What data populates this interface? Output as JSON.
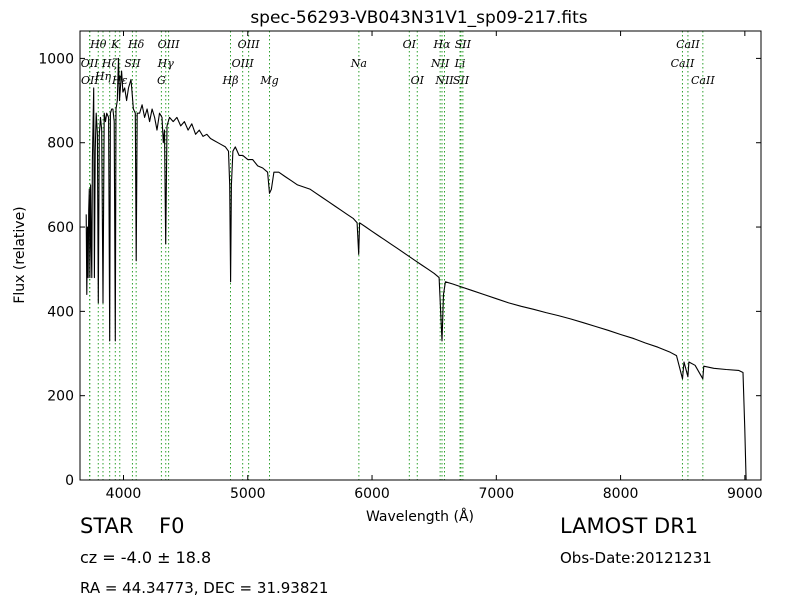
{
  "chart_data": {
    "type": "line",
    "title": "spec-56293-VB043N31V1_sp09-217.fits",
    "xlabel": "Wavelength (Å)",
    "ylabel": "Flux (relative)",
    "xlim": [
      3650,
      9130
    ],
    "ylim": [
      0,
      1065
    ],
    "xticks": [
      4000,
      5000,
      6000,
      7000,
      8000,
      9000
    ],
    "yticks": [
      0,
      200,
      400,
      600,
      800,
      1000
    ],
    "grid": false,
    "line_color": "#000000",
    "marker_color": "#2ca02c",
    "series": [
      {
        "points": [
          [
            3700,
            630
          ],
          [
            3705,
            440
          ],
          [
            3710,
            600
          ],
          [
            3715,
            480
          ],
          [
            3720,
            640
          ],
          [
            3725,
            690
          ],
          [
            3730,
            480
          ],
          [
            3735,
            700
          ],
          [
            3740,
            560
          ],
          [
            3745,
            480
          ],
          [
            3750,
            760
          ],
          [
            3760,
            930
          ],
          [
            3766,
            480
          ],
          [
            3772,
            780
          ],
          [
            3780,
            870
          ],
          [
            3790,
            820
          ],
          [
            3797,
            420
          ],
          [
            3805,
            820
          ],
          [
            3815,
            860
          ],
          [
            3825,
            830
          ],
          [
            3835,
            420
          ],
          [
            3845,
            870
          ],
          [
            3855,
            850
          ],
          [
            3865,
            870
          ],
          [
            3880,
            860
          ],
          [
            3889,
            330
          ],
          [
            3895,
            870
          ],
          [
            3905,
            880
          ],
          [
            3915,
            880
          ],
          [
            3925,
            850
          ],
          [
            3934,
            330
          ],
          [
            3940,
            880
          ],
          [
            3950,
            900
          ],
          [
            3960,
            1000
          ],
          [
            3968,
            900
          ],
          [
            3975,
            930
          ],
          [
            3985,
            970
          ],
          [
            3995,
            920
          ],
          [
            4010,
            930
          ],
          [
            4025,
            900
          ],
          [
            4040,
            930
          ],
          [
            4060,
            950
          ],
          [
            4080,
            880
          ],
          [
            4095,
            870
          ],
          [
            4102,
            520
          ],
          [
            4110,
            870
          ],
          [
            4130,
            870
          ],
          [
            4150,
            890
          ],
          [
            4170,
            860
          ],
          [
            4190,
            880
          ],
          [
            4210,
            850
          ],
          [
            4230,
            880
          ],
          [
            4250,
            860
          ],
          [
            4270,
            830
          ],
          [
            4290,
            870
          ],
          [
            4310,
            860
          ],
          [
            4320,
            800
          ],
          [
            4330,
            830
          ],
          [
            4340,
            560
          ],
          [
            4350,
            840
          ],
          [
            4370,
            860
          ],
          [
            4400,
            850
          ],
          [
            4430,
            860
          ],
          [
            4460,
            840
          ],
          [
            4490,
            850
          ],
          [
            4520,
            830
          ],
          [
            4550,
            845
          ],
          [
            4580,
            820
          ],
          [
            4610,
            830
          ],
          [
            4640,
            815
          ],
          [
            4670,
            820
          ],
          [
            4700,
            810
          ],
          [
            4730,
            805
          ],
          [
            4760,
            800
          ],
          [
            4790,
            795
          ],
          [
            4820,
            790
          ],
          [
            4845,
            780
          ],
          [
            4855,
            700
          ],
          [
            4862,
            470
          ],
          [
            4868,
            700
          ],
          [
            4880,
            780
          ],
          [
            4900,
            790
          ],
          [
            4930,
            770
          ],
          [
            4960,
            770
          ],
          [
            5000,
            760
          ],
          [
            5040,
            760
          ],
          [
            5080,
            745
          ],
          [
            5120,
            740
          ],
          [
            5160,
            730
          ],
          [
            5175,
            680
          ],
          [
            5190,
            690
          ],
          [
            5210,
            730
          ],
          [
            5250,
            730
          ],
          [
            5300,
            720
          ],
          [
            5350,
            710
          ],
          [
            5400,
            700
          ],
          [
            5450,
            695
          ],
          [
            5500,
            690
          ],
          [
            5550,
            680
          ],
          [
            5600,
            670
          ],
          [
            5650,
            660
          ],
          [
            5700,
            650
          ],
          [
            5750,
            640
          ],
          [
            5800,
            630
          ],
          [
            5850,
            620
          ],
          [
            5880,
            610
          ],
          [
            5893,
            535
          ],
          [
            5900,
            610
          ],
          [
            5950,
            600
          ],
          [
            6000,
            590
          ],
          [
            6050,
            580
          ],
          [
            6100,
            570
          ],
          [
            6150,
            560
          ],
          [
            6200,
            550
          ],
          [
            6250,
            540
          ],
          [
            6300,
            530
          ],
          [
            6350,
            520
          ],
          [
            6400,
            510
          ],
          [
            6450,
            500
          ],
          [
            6500,
            490
          ],
          [
            6540,
            480
          ],
          [
            6563,
            330
          ],
          [
            6575,
            440
          ],
          [
            6590,
            470
          ],
          [
            6650,
            465
          ],
          [
            6700,
            460
          ],
          [
            6800,
            450
          ],
          [
            6900,
            440
          ],
          [
            7000,
            430
          ],
          [
            7100,
            420
          ],
          [
            7200,
            412
          ],
          [
            7300,
            405
          ],
          [
            7400,
            397
          ],
          [
            7500,
            390
          ],
          [
            7600,
            382
          ],
          [
            7700,
            373
          ],
          [
            7800,
            364
          ],
          [
            7900,
            355
          ],
          [
            8000,
            345
          ],
          [
            8100,
            336
          ],
          [
            8200,
            325
          ],
          [
            8300,
            315
          ],
          [
            8400,
            303
          ],
          [
            8450,
            295
          ],
          [
            8498,
            240
          ],
          [
            8510,
            280
          ],
          [
            8542,
            245
          ],
          [
            8550,
            280
          ],
          [
            8600,
            272
          ],
          [
            8662,
            240
          ],
          [
            8670,
            270
          ],
          [
            8750,
            265
          ],
          [
            8850,
            262
          ],
          [
            8950,
            260
          ],
          [
            8985,
            255
          ],
          [
            9000,
            120
          ],
          [
            9010,
            0
          ]
        ]
      }
    ],
    "lines": [
      {
        "name": "OII",
        "x": 3727,
        "row": 1
      },
      {
        "name": "OII",
        "x": 3729,
        "row": 2
      },
      {
        "name": "Hθ",
        "x": 3797,
        "row": 0
      },
      {
        "name": "Hη",
        "x": 3835,
        "row": 1.5
      },
      {
        "name": "Hζ",
        "x": 3889,
        "row": 1
      },
      {
        "name": "K",
        "x": 3934,
        "row": 0
      },
      {
        "name": "Hε",
        "x": 3970,
        "row": 2
      },
      {
        "name": "SII",
        "x": 4072,
        "row": 1
      },
      {
        "name": "Hδ",
        "x": 4102,
        "row": 0
      },
      {
        "name": "G",
        "x": 4305,
        "row": 2
      },
      {
        "name": "Hγ",
        "x": 4340,
        "row": 1
      },
      {
        "name": "OIII",
        "x": 4363,
        "row": 0
      },
      {
        "name": "Hβ",
        "x": 4861,
        "row": 2
      },
      {
        "name": "OIII",
        "x": 4959,
        "row": 1
      },
      {
        "name": "OIII",
        "x": 5007,
        "row": 0
      },
      {
        "name": "Mg",
        "x": 5175,
        "row": 2
      },
      {
        "name": "Na",
        "x": 5894,
        "row": 1
      },
      {
        "name": "OI",
        "x": 6300,
        "row": 0
      },
      {
        "name": "OI",
        "x": 6364,
        "row": 2
      },
      {
        "name": "NII",
        "x": 6548,
        "row": 1
      },
      {
        "name": "Hα",
        "x": 6563,
        "row": 0
      },
      {
        "name": "NII",
        "x": 6583,
        "row": 2
      },
      {
        "name": "Li",
        "x": 6708,
        "row": 1
      },
      {
        "name": "SII",
        "x": 6716,
        "row": 2
      },
      {
        "name": "SII",
        "x": 6731,
        "row": 0
      },
      {
        "name": "CaII",
        "x": 8498,
        "row": 1
      },
      {
        "name": "CaII",
        "x": 8542,
        "row": 0
      },
      {
        "name": "CaII",
        "x": 8662,
        "row": 2
      }
    ]
  },
  "info": {
    "class": "STAR",
    "subclass": "F0",
    "survey": "LAMOST DR1",
    "redshift": "cz = -4.0  ± 18.8",
    "obs_date": "Obs-Date:20121231",
    "coords": "RA = 44.34773, DEC = 31.93821"
  }
}
